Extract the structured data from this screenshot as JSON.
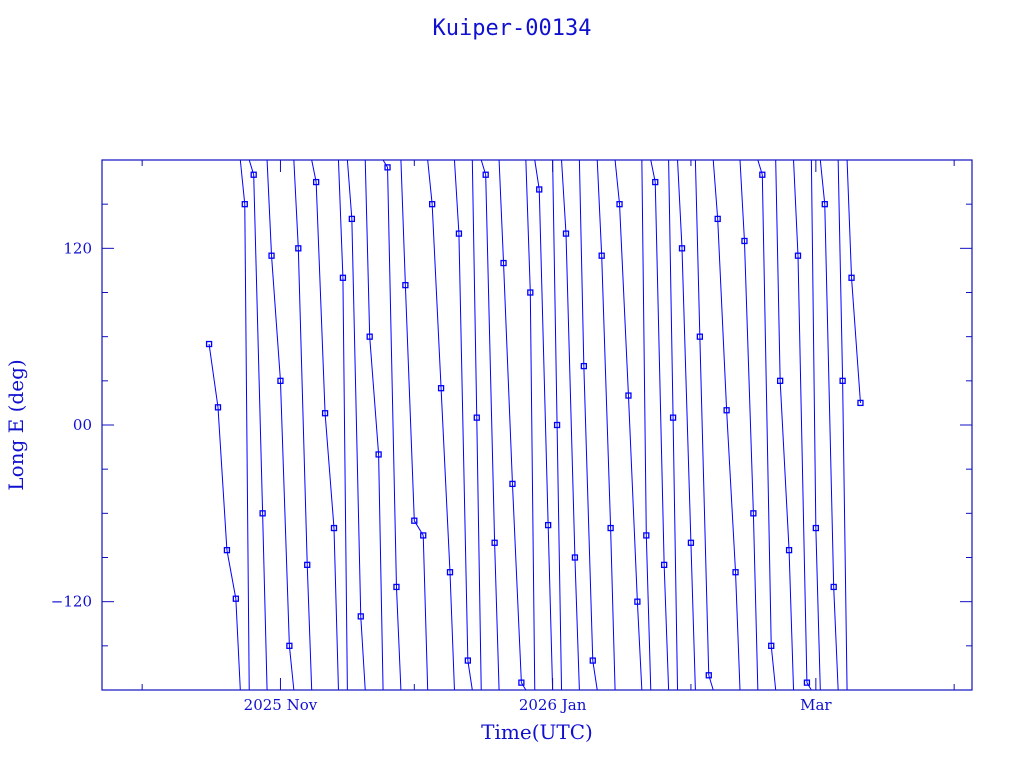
{
  "chart_data": {
    "type": "line",
    "title": "Kuiper-00134",
    "xlabel": "Time(UTC)",
    "ylabel": "Long E (deg)",
    "xlim": [
      "2025-09-22",
      "2026-04-05"
    ],
    "ylim": [
      -180,
      180
    ],
    "xticks": [
      {
        "date": "2025-11-01",
        "label": "2025 Nov"
      },
      {
        "date": "2026-01-01",
        "label": "2026 Jan"
      },
      {
        "date": "2026-03-01",
        "label": "Mar"
      }
    ],
    "xminor_ticks": [
      "2025-10-01",
      "2025-12-01",
      "2026-02-01",
      "2026-04-01"
    ],
    "yticks": [
      {
        "value": 120,
        "label": "120"
      },
      {
        "value": 0,
        "label": "00"
      },
      {
        "value": -120,
        "label": "−120"
      }
    ],
    "grid": false,
    "marker": "square",
    "color": "#0000ff",
    "series": [
      {
        "x": [
          "2025-10-16",
          "2025-10-18",
          "2025-10-20",
          "2025-10-22",
          "2025-10-24",
          "2025-10-26",
          "2025-10-28",
          "2025-10-30",
          "2025-11-01",
          "2025-11-03",
          "2025-11-05",
          "2025-11-07",
          "2025-11-09",
          "2025-11-11",
          "2025-11-13",
          "2025-11-15",
          "2025-11-17",
          "2025-11-19",
          "2025-11-21",
          "2025-11-23",
          "2025-11-25",
          "2025-11-27",
          "2025-11-29",
          "2025-12-01",
          "2025-12-03",
          "2025-12-05",
          "2025-12-07",
          "2025-12-09",
          "2025-12-11",
          "2025-12-13",
          "2025-12-15",
          "2025-12-17",
          "2025-12-19",
          "2025-12-21",
          "2025-12-23",
          "2025-12-25",
          "2025-12-27",
          "2025-12-29",
          "2025-12-31",
          "2026-01-02",
          "2026-01-04",
          "2026-01-06",
          "2026-01-08",
          "2026-01-10",
          "2026-01-12",
          "2026-01-14",
          "2026-01-16",
          "2026-01-18",
          "2026-01-20",
          "2026-01-22",
          "2026-01-24",
          "2026-01-26",
          "2026-01-28",
          "2026-01-30",
          "2026-02-01",
          "2026-02-03",
          "2026-02-05",
          "2026-02-07",
          "2026-02-09",
          "2026-02-11",
          "2026-02-13",
          "2026-02-15",
          "2026-02-17",
          "2026-02-19",
          "2026-02-21",
          "2026-02-23",
          "2026-02-25",
          "2026-02-27",
          "2026-03-01",
          "2026-03-03",
          "2026-03-05",
          "2026-03-07",
          "2026-03-09",
          "2026-03-11"
        ],
        "y": [
          55,
          12,
          -85,
          -118,
          150,
          170,
          -60,
          115,
          30,
          -150,
          120,
          -95,
          165,
          8,
          -70,
          100,
          140,
          -130,
          60,
          -20,
          175,
          -110,
          95,
          -65,
          -75,
          150,
          25,
          -100,
          130,
          -160,
          5,
          170,
          -80,
          110,
          -40,
          -175,
          90,
          160,
          -68,
          0,
          130,
          -90,
          40,
          -160,
          115,
          -70,
          150,
          20,
          -120,
          -75,
          165,
          -95,
          5,
          120,
          -80,
          60,
          -170,
          140,
          10,
          -100,
          125,
          -60,
          170,
          -150,
          30,
          -85,
          115,
          -175,
          -70,
          150,
          -110,
          30,
          100,
          15
        ]
      }
    ]
  }
}
